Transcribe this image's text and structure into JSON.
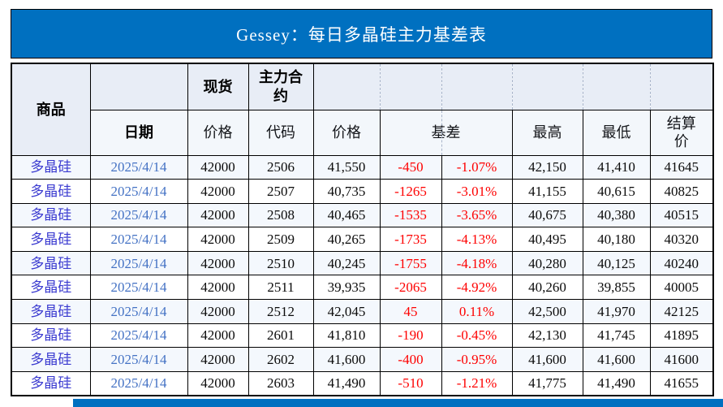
{
  "title": "Gessey：每日多晶硅主力基差表",
  "header": {
    "commodity": "商品",
    "date": "日期",
    "spot": "现货",
    "spot_price": "价格",
    "main_contract": "主力合约",
    "code": "代码",
    "price": "价格",
    "basis": "基差",
    "high": "最高",
    "low": "最低",
    "settle": "结算价"
  },
  "colors": {
    "title_bg": "#0070C0",
    "title_text": "#FFFFFF",
    "header_row1_bg": "#E8EDF6",
    "header_row2_bg": "#F3F7FB",
    "row_band_bg": "#F4F8FD",
    "basis_text": "#FE0000",
    "commodity_text": "#3A3AD0",
    "date_text": "#4472C4",
    "border": "#000000"
  },
  "table": {
    "rows": [
      {
        "commodity": "多晶硅",
        "date": "2025/4/14",
        "spot_price": "42000",
        "code": "2506",
        "price": "41,550",
        "basis": "-450",
        "basis_pct": "-1.07%",
        "high": "42,150",
        "low": "41,410",
        "settle": "41645"
      },
      {
        "commodity": "多晶硅",
        "date": "2025/4/14",
        "spot_price": "42000",
        "code": "2507",
        "price": "40,735",
        "basis": "-1265",
        "basis_pct": "-3.01%",
        "high": "41,155",
        "low": "40,615",
        "settle": "40825"
      },
      {
        "commodity": "多晶硅",
        "date": "2025/4/14",
        "spot_price": "42000",
        "code": "2508",
        "price": "40,465",
        "basis": "-1535",
        "basis_pct": "-3.65%",
        "high": "40,675",
        "low": "40,380",
        "settle": "40515"
      },
      {
        "commodity": "多晶硅",
        "date": "2025/4/14",
        "spot_price": "42000",
        "code": "2509",
        "price": "40,265",
        "basis": "-1735",
        "basis_pct": "-4.13%",
        "high": "40,495",
        "low": "40,180",
        "settle": "40320"
      },
      {
        "commodity": "多晶硅",
        "date": "2025/4/14",
        "spot_price": "42000",
        "code": "2510",
        "price": "40,245",
        "basis": "-1755",
        "basis_pct": "-4.18%",
        "high": "40,280",
        "low": "40,125",
        "settle": "40240"
      },
      {
        "commodity": "多晶硅",
        "date": "2025/4/14",
        "spot_price": "42000",
        "code": "2511",
        "price": "39,935",
        "basis": "-2065",
        "basis_pct": "-4.92%",
        "high": "40,260",
        "low": "39,855",
        "settle": "40005"
      },
      {
        "commodity": "多晶硅",
        "date": "2025/4/14",
        "spot_price": "42000",
        "code": "2512",
        "price": "42,045",
        "basis": "45",
        "basis_pct": "0.11%",
        "high": "42,500",
        "low": "41,970",
        "settle": "42125"
      },
      {
        "commodity": "多晶硅",
        "date": "2025/4/14",
        "spot_price": "42000",
        "code": "2601",
        "price": "41,810",
        "basis": "-190",
        "basis_pct": "-0.45%",
        "high": "42,130",
        "low": "41,745",
        "settle": "41895"
      },
      {
        "commodity": "多晶硅",
        "date": "2025/4/14",
        "spot_price": "42000",
        "code": "2602",
        "price": "41,600",
        "basis": "-400",
        "basis_pct": "-0.95%",
        "high": "41,600",
        "low": "41,600",
        "settle": "41600"
      },
      {
        "commodity": "多晶硅",
        "date": "2025/4/14",
        "spot_price": "42000",
        "code": "2603",
        "price": "41,490",
        "basis": "-510",
        "basis_pct": "-1.21%",
        "high": "41,775",
        "low": "41,490",
        "settle": "41655"
      }
    ]
  }
}
